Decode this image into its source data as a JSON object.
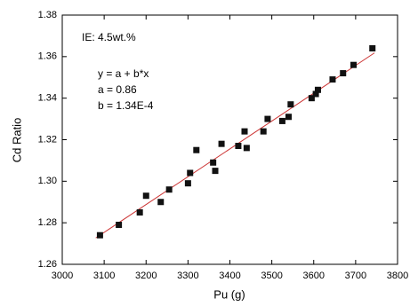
{
  "chart_data": {
    "type": "scatter",
    "x_label": "Pu (g)",
    "y_label": "Cd Ratio",
    "annotations": [
      "IE: 4.5wt.%",
      "y = a + b*x",
      "a = 0.86",
      "b = 1.34E-4"
    ],
    "x": [
      3090,
      3135,
      3185,
      3200,
      3235,
      3255,
      3300,
      3305,
      3320,
      3360,
      3365,
      3380,
      3420,
      3435,
      3440,
      3480,
      3490,
      3525,
      3540,
      3545,
      3595,
      3605,
      3610,
      3645,
      3670,
      3695,
      3740
    ],
    "values": [
      1.274,
      1.279,
      1.285,
      1.293,
      1.29,
      1.296,
      1.299,
      1.304,
      1.315,
      1.309,
      1.305,
      1.318,
      1.317,
      1.324,
      1.316,
      1.324,
      1.33,
      1.329,
      1.331,
      1.337,
      1.34,
      1.342,
      1.344,
      1.349,
      1.352,
      1.356,
      1.364
    ],
    "color": "#111111",
    "fit_line": {
      "x": [
        3080,
        3745
      ],
      "values": [
        1.2727,
        1.3618
      ],
      "color": "#cc3333"
    },
    "xlim": [
      3000,
      3800
    ],
    "xticks": [
      3000,
      3100,
      3200,
      3300,
      3400,
      3500,
      3600,
      3700,
      3800
    ],
    "ylim": [
      1.26,
      1.38
    ],
    "yticks": [
      1.26,
      1.28,
      {
        "value": 1.3,
        "label": "1.30"
      },
      1.32,
      1.34,
      1.36,
      1.38
    ],
    "grid": false
  }
}
